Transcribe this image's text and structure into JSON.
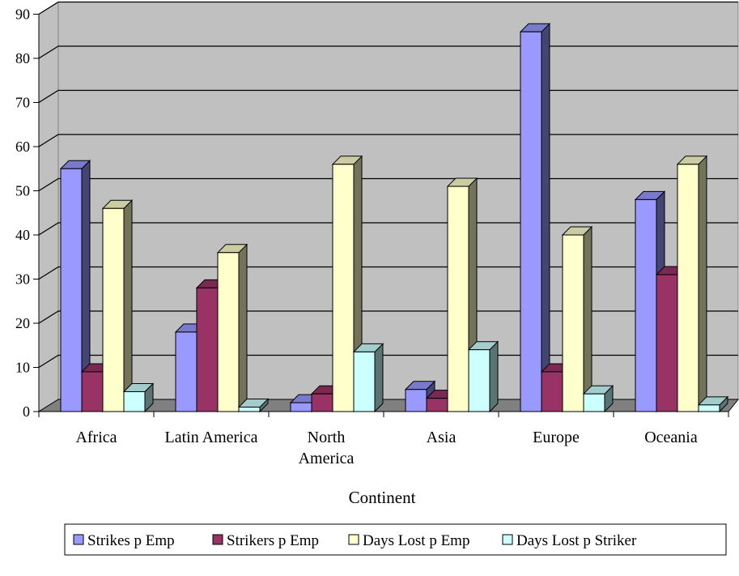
{
  "chart_data": {
    "type": "bar",
    "title": "",
    "xlabel": "Continent",
    "ylabel": "",
    "ylim": [
      0,
      90
    ],
    "yticks": [
      0,
      10,
      20,
      30,
      40,
      50,
      60,
      70,
      80,
      90
    ],
    "grid": true,
    "legend_position": "bottom",
    "categories": [
      [
        "Africa"
      ],
      [
        "Latin America"
      ],
      [
        "North",
        "America"
      ],
      [
        "Asia"
      ],
      [
        "Europe"
      ],
      [
        "Oceania"
      ]
    ],
    "series": [
      {
        "name": "Strikes p Emp",
        "values": [
          55,
          18,
          2,
          5,
          86,
          48
        ],
        "color": "#9999ff"
      },
      {
        "name": "Strikers p Emp",
        "values": [
          9,
          28,
          4,
          3,
          9,
          31
        ],
        "color": "#993366"
      },
      {
        "name": "Days Lost p Emp",
        "values": [
          46,
          36,
          56,
          51,
          40,
          56
        ],
        "color": "#ffffcc"
      },
      {
        "name": "Days Lost p Striker",
        "values": [
          4.5,
          1,
          13.5,
          14,
          4,
          1.5
        ],
        "color": "#ccffff"
      }
    ],
    "colors": {
      "plot_back": "#c0c0c0",
      "floor": "#808080"
    }
  }
}
